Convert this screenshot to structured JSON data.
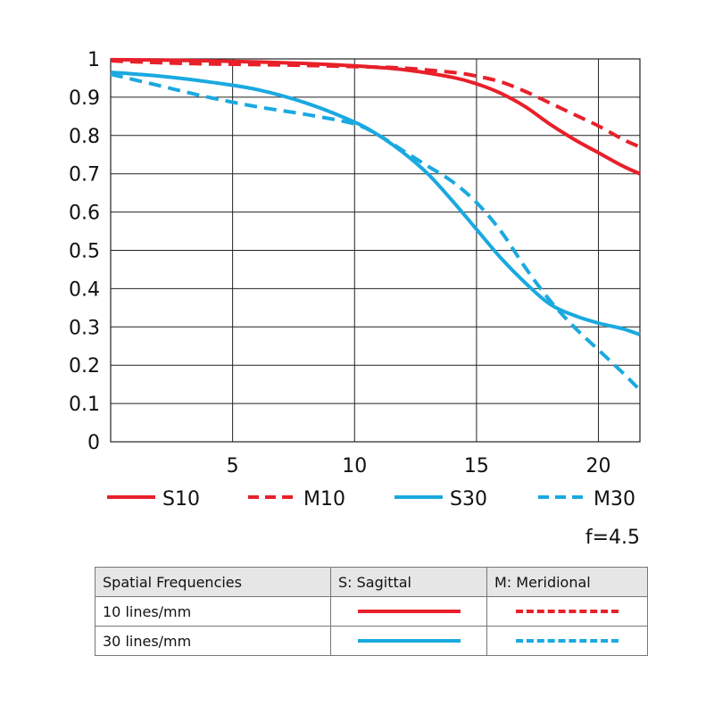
{
  "chart_data": {
    "type": "line",
    "xlim": [
      0,
      21.7
    ],
    "ylim": [
      0,
      1
    ],
    "x_ticks": [
      5,
      10,
      15,
      20
    ],
    "y_ticks": [
      0,
      0.1,
      0.2,
      0.3,
      0.4,
      0.5,
      0.6,
      0.7,
      0.8,
      0.9,
      1
    ],
    "y_tick_labels": [
      "0",
      "0.1",
      "0.2",
      "0.3",
      "0.4",
      "0.5",
      "0.6",
      "0.7",
      "0.8",
      "0.9",
      "1"
    ],
    "grid": true,
    "legend_position": "bottom",
    "series": [
      {
        "name": "S10",
        "color": "#e8202a",
        "style": "solid",
        "x": [
          0,
          2,
          4,
          6,
          8,
          10,
          12,
          14,
          15,
          16,
          17,
          18,
          19,
          20,
          21,
          21.7
        ],
        "y": [
          0.998,
          0.997,
          0.995,
          0.992,
          0.988,
          0.982,
          0.972,
          0.952,
          0.935,
          0.91,
          0.875,
          0.83,
          0.79,
          0.755,
          0.72,
          0.7
        ]
      },
      {
        "name": "M10",
        "color": "#e8202a",
        "style": "dashed",
        "x": [
          0,
          2,
          4,
          6,
          8,
          10,
          12,
          14,
          15,
          16,
          17,
          18,
          19,
          20,
          21,
          21.7
        ],
        "y": [
          0.995,
          0.99,
          0.987,
          0.985,
          0.983,
          0.98,
          0.976,
          0.965,
          0.955,
          0.94,
          0.915,
          0.885,
          0.855,
          0.825,
          0.79,
          0.77
        ]
      },
      {
        "name": "S30",
        "color": "#1aa9e0",
        "style": "solid",
        "x": [
          0,
          2,
          4,
          6,
          8,
          10,
          11,
          12,
          13,
          14,
          15,
          16,
          17,
          18,
          19,
          20,
          21,
          21.7
        ],
        "y": [
          0.965,
          0.955,
          0.94,
          0.92,
          0.885,
          0.835,
          0.8,
          0.755,
          0.7,
          0.63,
          0.555,
          0.48,
          0.415,
          0.36,
          0.33,
          0.31,
          0.295,
          0.28
        ]
      },
      {
        "name": "M30",
        "color": "#1aa9e0",
        "style": "dashed",
        "x": [
          0,
          2,
          4,
          6,
          8,
          10,
          11,
          12,
          13,
          14,
          15,
          16,
          17,
          18,
          19,
          20,
          21,
          21.7
        ],
        "y": [
          0.96,
          0.93,
          0.9,
          0.875,
          0.855,
          0.83,
          0.8,
          0.76,
          0.72,
          0.68,
          0.625,
          0.55,
          0.455,
          0.37,
          0.3,
          0.24,
          0.18,
          0.135
        ]
      }
    ]
  },
  "aperture_label": "f=4.5",
  "key_table": {
    "header": [
      "Spatial Frequencies",
      "S: Sagittal",
      "M: Meridional"
    ],
    "rows": [
      {
        "label": "10 lines/mm",
        "color": "#e8202a"
      },
      {
        "label": "30 lines/mm",
        "color": "#1aa9e0"
      }
    ]
  }
}
